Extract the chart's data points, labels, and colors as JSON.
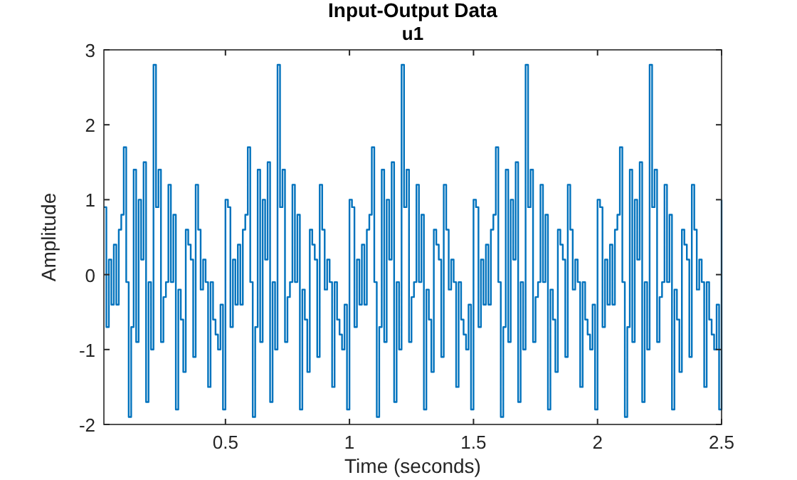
{
  "chart_data": {
    "type": "step",
    "title": "Input-Output Data",
    "subtitle": "u1",
    "xlabel": "Time (seconds)",
    "ylabel": "Amplitude",
    "xlim": [
      0.01,
      2.5
    ],
    "xticks": [
      0.5,
      1,
      1.5,
      2,
      2.5
    ],
    "ylim": [
      -2,
      3
    ],
    "yticks": [
      -2,
      -1,
      0,
      1,
      2,
      3
    ],
    "grid": false,
    "x": [
      0.01,
      0.02,
      0.03,
      0.04,
      0.05,
      0.06,
      0.07,
      0.08,
      0.09,
      0.1,
      0.11,
      0.12,
      0.13,
      0.14,
      0.15,
      0.16,
      0.17,
      0.18,
      0.19,
      0.2,
      0.21,
      0.22,
      0.23,
      0.24,
      0.25,
      0.26,
      0.27,
      0.28,
      0.29,
      0.3,
      0.31,
      0.32,
      0.33,
      0.34,
      0.35,
      0.36,
      0.37,
      0.38,
      0.39,
      0.4,
      0.41,
      0.42,
      0.43,
      0.44,
      0.45,
      0.46,
      0.47,
      0.48,
      0.49,
      0.5,
      0.51,
      0.52,
      0.53,
      0.54,
      0.55,
      0.56,
      0.57,
      0.58,
      0.59,
      0.6,
      0.61,
      0.62,
      0.63,
      0.64,
      0.65,
      0.66,
      0.67,
      0.68,
      0.69,
      0.7,
      0.71,
      0.72,
      0.73,
      0.74,
      0.75,
      0.76,
      0.77,
      0.78,
      0.79,
      0.8,
      0.81,
      0.82,
      0.83,
      0.84,
      0.85,
      0.86,
      0.87,
      0.88,
      0.89,
      0.9,
      0.91,
      0.92,
      0.93,
      0.94,
      0.95,
      0.96,
      0.97,
      0.98,
      0.99,
      1,
      1.01,
      1.02,
      1.03,
      1.04,
      1.05,
      1.06,
      1.07,
      1.08,
      1.09,
      1.1,
      1.11,
      1.12,
      1.13,
      1.14,
      1.15,
      1.16,
      1.17,
      1.18,
      1.19,
      1.2,
      1.21,
      1.22,
      1.23,
      1.24,
      1.25,
      1.26,
      1.27,
      1.28,
      1.29,
      1.3,
      1.31,
      1.32,
      1.33,
      1.34,
      1.35,
      1.36,
      1.37,
      1.38,
      1.39,
      1.4,
      1.41,
      1.42,
      1.43,
      1.44,
      1.45,
      1.46,
      1.47,
      1.48,
      1.49,
      1.5,
      1.51,
      1.52,
      1.53,
      1.54,
      1.55,
      1.56,
      1.57,
      1.58,
      1.59,
      1.6,
      1.61,
      1.62,
      1.63,
      1.64,
      1.65,
      1.66,
      1.67,
      1.68,
      1.69,
      1.7,
      1.71,
      1.72,
      1.73,
      1.74,
      1.75,
      1.76,
      1.77,
      1.78,
      1.79,
      1.8,
      1.81,
      1.82,
      1.83,
      1.84,
      1.85,
      1.86,
      1.87,
      1.88,
      1.89,
      1.9,
      1.91,
      1.92,
      1.93,
      1.94,
      1.95,
      1.96,
      1.97,
      1.98,
      1.99,
      2,
      2.01,
      2.02,
      2.03,
      2.04,
      2.05,
      2.06,
      2.07,
      2.08,
      2.09,
      2.1,
      2.11,
      2.12,
      2.13,
      2.14,
      2.15,
      2.16,
      2.17,
      2.18,
      2.19,
      2.2,
      2.21,
      2.22,
      2.23,
      2.24,
      2.25,
      2.26,
      2.27,
      2.28,
      2.29,
      2.3,
      2.31,
      2.32,
      2.33,
      2.34,
      2.35,
      2.36,
      2.37,
      2.38,
      2.39,
      2.4,
      2.41,
      2.42,
      2.43,
      2.44,
      2.45,
      2.46,
      2.47,
      2.48,
      2.49,
      2.5
    ],
    "series": [
      {
        "color": "#0072bd",
        "values": [
          0.9,
          -0.7,
          0.2,
          -0.4,
          0.4,
          -0.4,
          0.6,
          0.8,
          1.7,
          -0.1,
          -1.9,
          -0.7,
          1.4,
          -0.9,
          1,
          0.2,
          1.5,
          -1.7,
          -0.1,
          -1,
          2.8,
          0.9,
          1.4,
          -0.9,
          -0.3,
          -0.1,
          1.2,
          -0.1,
          0.8,
          -1.8,
          -0.2,
          -0.6,
          -1.3,
          0.6,
          0.4,
          0.2,
          -1.1,
          1.2,
          0.6,
          -0.2,
          0.2,
          -0.1,
          -1.5,
          -0.1,
          -0.6,
          -0.8,
          -1,
          -0.4,
          -1.8,
          1,
          0.9,
          -0.7,
          0.2,
          -0.4,
          0.4,
          -0.4,
          0.6,
          0.8,
          1.7,
          -0.1,
          -1.9,
          -0.7,
          1.4,
          -0.9,
          1,
          0.2,
          1.5,
          -1.7,
          -0.1,
          -1,
          2.8,
          0.9,
          1.4,
          -0.9,
          -0.3,
          -0.1,
          1.2,
          -0.1,
          0.8,
          -1.8,
          -0.2,
          -0.6,
          -1.3,
          0.6,
          0.4,
          0.2,
          -1.1,
          1.2,
          0.6,
          -0.2,
          0.2,
          -0.1,
          -1.5,
          -0.1,
          -0.6,
          -0.8,
          -1,
          -0.4,
          -1.8,
          1,
          0.9,
          -0.7,
          0.2,
          -0.4,
          0.4,
          -0.4,
          0.6,
          0.8,
          1.7,
          -0.1,
          -1.9,
          -0.7,
          1.4,
          -0.9,
          1,
          0.2,
          1.5,
          -1.7,
          -0.1,
          -1,
          2.8,
          0.9,
          1.4,
          -0.9,
          -0.3,
          -0.1,
          1.2,
          -0.1,
          0.8,
          -1.8,
          -0.2,
          -0.6,
          -1.3,
          0.6,
          0.4,
          0.2,
          -1.1,
          1.2,
          0.6,
          -0.2,
          0.2,
          -0.1,
          -1.5,
          -0.1,
          -0.6,
          -0.8,
          -1,
          -0.4,
          -1.8,
          1,
          0.9,
          -0.7,
          0.2,
          -0.4,
          0.4,
          -0.4,
          0.6,
          0.8,
          1.7,
          -0.1,
          -1.9,
          -0.7,
          1.4,
          -0.9,
          1,
          0.2,
          1.5,
          -1.7,
          -0.1,
          -1,
          2.8,
          0.9,
          1.4,
          -0.9,
          -0.3,
          -0.1,
          1.2,
          -0.1,
          0.8,
          -1.8,
          -0.2,
          -0.6,
          -1.3,
          0.6,
          0.4,
          0.2,
          -1.1,
          1.2,
          0.6,
          -0.2,
          0.2,
          -0.1,
          -1.5,
          -0.1,
          -0.6,
          -0.8,
          -1,
          -0.4,
          -1.8,
          1,
          0.9,
          -0.7,
          0.2,
          -0.4,
          0.4,
          -0.4,
          0.6,
          0.8,
          1.7,
          -0.1,
          -1.9,
          -0.7,
          1.4,
          -0.9,
          1,
          0.2,
          1.5,
          -1.7,
          -0.1,
          -1,
          2.8,
          0.9,
          1.4,
          -0.9,
          -0.3,
          -0.1,
          1.2,
          -0.1,
          0.8,
          -1.8,
          -0.2,
          -0.6,
          -1.3,
          0.6,
          0.4,
          0.2,
          -1.1,
          1.2,
          0.6,
          -0.2,
          0.2,
          -0.1,
          -1.5,
          -0.1,
          -0.6,
          -0.8,
          -1,
          -0.4,
          -1.8,
          1
        ]
      }
    ]
  }
}
